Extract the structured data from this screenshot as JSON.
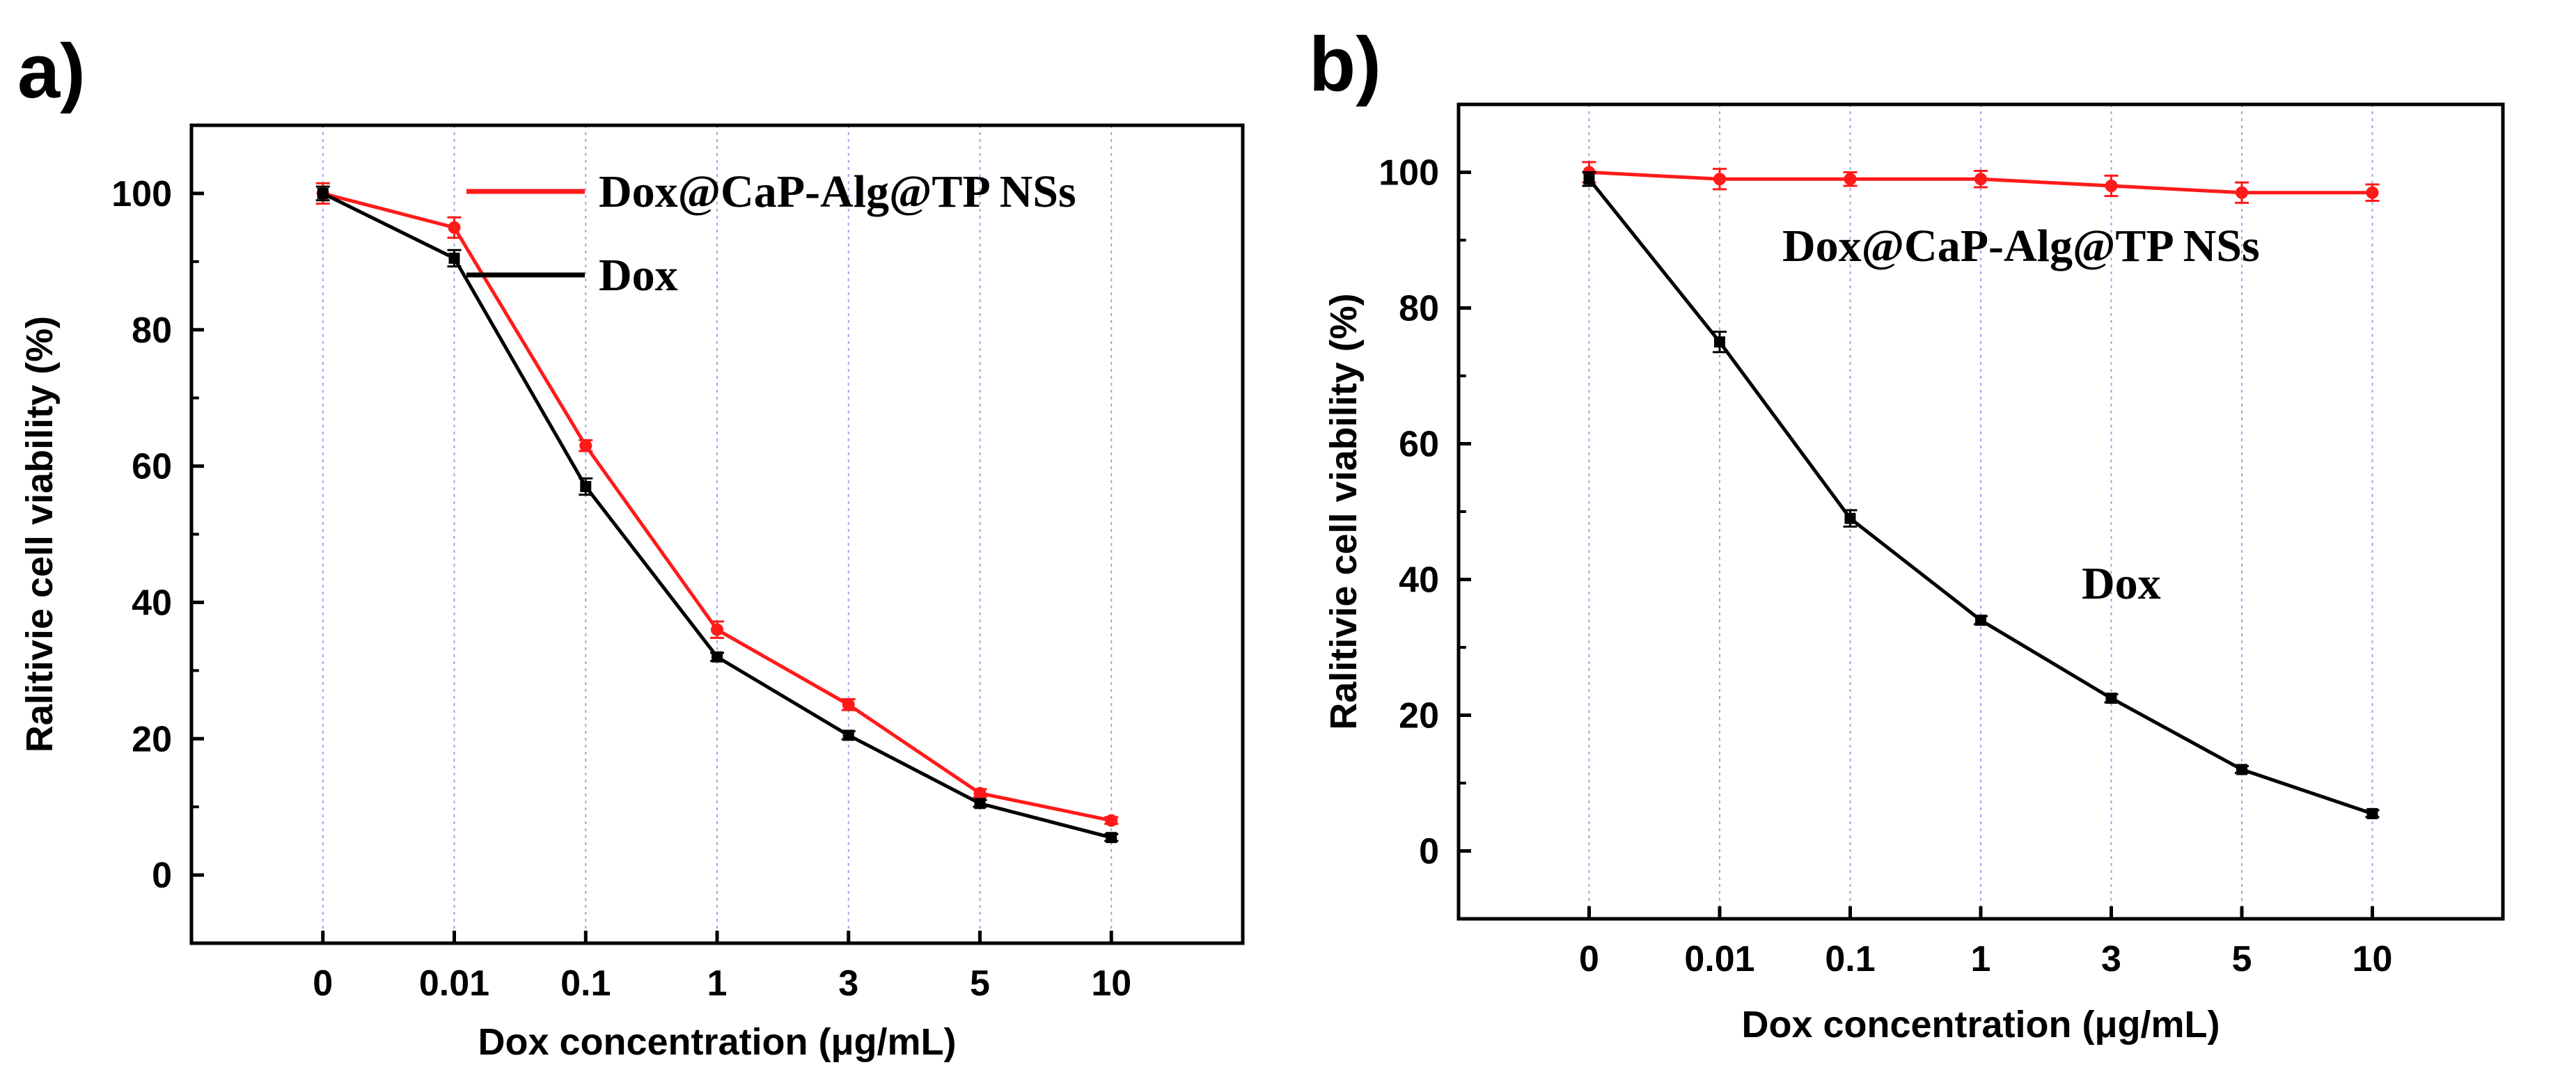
{
  "chart_data": [
    {
      "type": "line",
      "panel_label": "a)",
      "title": "",
      "xlabel": "Dox concentration (μg/mL)",
      "ylabel": "Ralitivie cell viability (%)",
      "categories": [
        "0",
        "0.01",
        "0.1",
        "1",
        "3",
        "5",
        "10"
      ],
      "ylim": [
        -10,
        110
      ],
      "yticks": [
        0,
        20,
        40,
        60,
        80,
        100
      ],
      "grid": "vertical dotted at categories",
      "legend_placement": "top-right",
      "series": [
        {
          "name": "Dox@CaP-Alg@TP NSs",
          "color": "#ff1a1a",
          "marker": "circle",
          "values": [
            100,
            95,
            63,
            36,
            25,
            12,
            8
          ],
          "errors": [
            1.5,
            1.5,
            0.8,
            1.2,
            0.8,
            0.6,
            0.5
          ]
        },
        {
          "name": "Dox",
          "color": "#000000",
          "marker": "square",
          "values": [
            100,
            90.5,
            57,
            32,
            20.5,
            10.5,
            5.5
          ],
          "errors": [
            1.0,
            1.2,
            1.2,
            0.6,
            0.6,
            0.5,
            0.5
          ]
        }
      ],
      "annotations": []
    },
    {
      "type": "line",
      "panel_label": "b)",
      "title": "",
      "xlabel": "Dox concentration (μg/mL)",
      "ylabel": "Ralitivie cell viability (%)",
      "categories": [
        "0",
        "0.01",
        "0.1",
        "1",
        "3",
        "5",
        "10"
      ],
      "ylim": [
        -10,
        110
      ],
      "yticks": [
        0,
        20,
        40,
        60,
        80,
        100
      ],
      "grid": "vertical dotted at categories",
      "legend_placement": "none (inline labels)",
      "series": [
        {
          "name": "Dox@CaP-Alg@TP NSs",
          "color": "#ff1a1a",
          "marker": "circle",
          "values": [
            100,
            99,
            99,
            99,
            98,
            97,
            97
          ],
          "errors": [
            1.5,
            1.5,
            1.0,
            1.2,
            1.5,
            1.5,
            1.2
          ]
        },
        {
          "name": "Dox",
          "color": "#000000",
          "marker": "square",
          "values": [
            99,
            75,
            49,
            34,
            22.5,
            12,
            5.5
          ],
          "errors": [
            1.0,
            1.5,
            1.2,
            0.6,
            0.6,
            0.5,
            0.5
          ]
        }
      ],
      "annotations": [
        {
          "text": "Dox@CaP-Alg@TP NSs"
        },
        {
          "text": "Dox"
        }
      ]
    }
  ]
}
